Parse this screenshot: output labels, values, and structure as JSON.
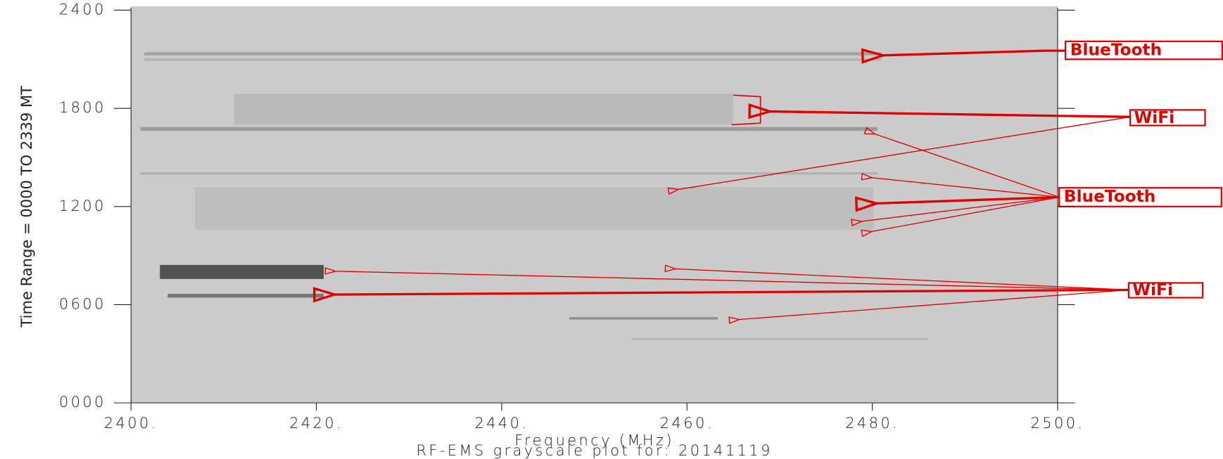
{
  "chart_data": {
    "type": "spectrogram",
    "title": "RF-EMS grayscale plot for: 20141119",
    "x_label": "Frequency (MHz)",
    "y_label": "Time Range = 0000 TO 2339 MT",
    "xlim": [
      2400,
      2500
    ],
    "xticks": [
      {
        "value": 2400,
        "label": "2400."
      },
      {
        "value": 2420,
        "label": "2420."
      },
      {
        "value": 2440,
        "label": "2440."
      },
      {
        "value": 2460,
        "label": "2460."
      },
      {
        "value": 2480,
        "label": "2480."
      },
      {
        "value": 2500,
        "label": "2500."
      }
    ],
    "ylim": [
      0,
      2400
    ],
    "yticks": [
      {
        "value": 0,
        "label": "0000"
      },
      {
        "value": 600,
        "label": "0600"
      },
      {
        "value": 1200,
        "label": "1200"
      },
      {
        "value": 1800,
        "label": "1800"
      },
      {
        "value": 2400,
        "label": "2400"
      }
    ],
    "annotations": [
      "BlueTooth",
      "WiFi",
      "BlueTooth",
      "WiFi"
    ]
  }
}
